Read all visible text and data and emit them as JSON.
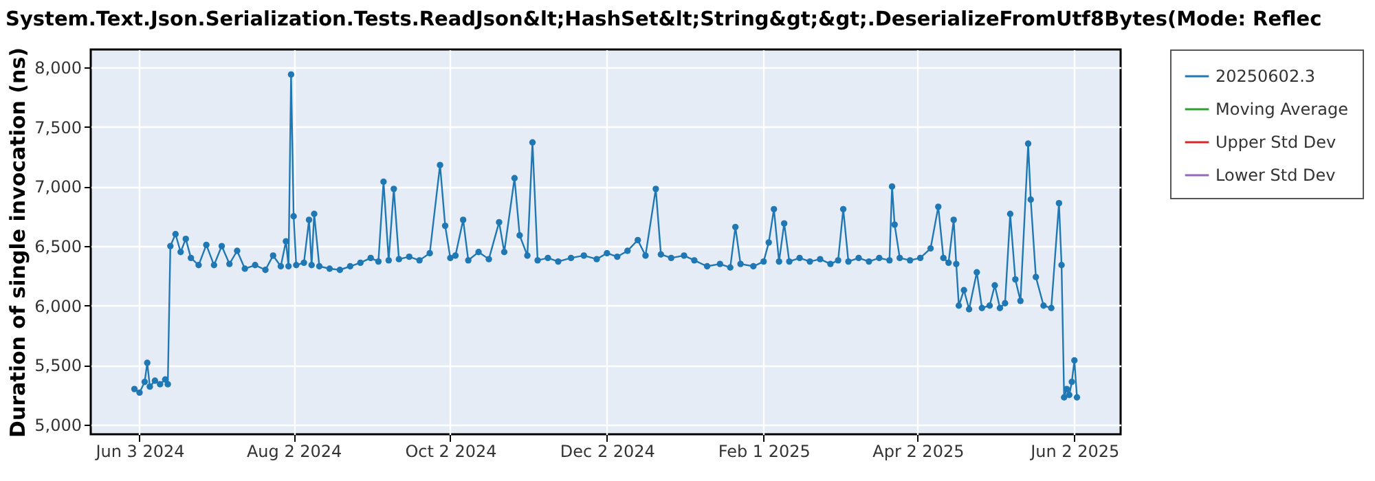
{
  "chart_data": {
    "type": "line",
    "title": "System.Text.Json.Serialization.Tests.ReadJson&lt;HashSet&lt;String&gt;&gt;.DeserializeFromUtf8Bytes(Mode: Reflec",
    "ylabel": "Duration of single invocation (ns)",
    "x": [
      "2024-06-01",
      "2024-06-03",
      "2024-06-05",
      "2024-06-06",
      "2024-06-07",
      "2024-06-09",
      "2024-06-11",
      "2024-06-13",
      "2024-06-14",
      "2024-06-15",
      "2024-06-17",
      "2024-06-19",
      "2024-06-21",
      "2024-06-23",
      "2024-06-26",
      "2024-06-29",
      "2024-07-02",
      "2024-07-05",
      "2024-07-08",
      "2024-07-11",
      "2024-07-14",
      "2024-07-18",
      "2024-07-22",
      "2024-07-25",
      "2024-07-28",
      "2024-07-30",
      "2024-07-31",
      "2024-08-01",
      "2024-08-02",
      "2024-08-03",
      "2024-08-06",
      "2024-08-08",
      "2024-08-09",
      "2024-08-10",
      "2024-08-12",
      "2024-08-16",
      "2024-08-20",
      "2024-08-24",
      "2024-08-28",
      "2024-09-01",
      "2024-09-04",
      "2024-09-06",
      "2024-09-08",
      "2024-09-10",
      "2024-09-12",
      "2024-09-16",
      "2024-09-20",
      "2024-09-24",
      "2024-09-28",
      "2024-09-30",
      "2024-10-02",
      "2024-10-04",
      "2024-10-07",
      "2024-10-09",
      "2024-10-13",
      "2024-10-17",
      "2024-10-21",
      "2024-10-23",
      "2024-10-27",
      "2024-10-29",
      "2024-11-01",
      "2024-11-03",
      "2024-11-05",
      "2024-11-09",
      "2024-11-13",
      "2024-11-18",
      "2024-11-23",
      "2024-11-28",
      "2024-12-02",
      "2024-12-06",
      "2024-12-10",
      "2024-12-14",
      "2024-12-17",
      "2024-12-21",
      "2024-12-23",
      "2024-12-27",
      "2025-01-01",
      "2025-01-05",
      "2025-01-10",
      "2025-01-15",
      "2025-01-19",
      "2025-01-21",
      "2025-01-23",
      "2025-01-28",
      "2025-02-01",
      "2025-02-03",
      "2025-02-05",
      "2025-02-07",
      "2025-02-09",
      "2025-02-11",
      "2025-02-15",
      "2025-02-19",
      "2025-02-23",
      "2025-02-27",
      "2025-03-02",
      "2025-03-04",
      "2025-03-06",
      "2025-03-10",
      "2025-03-14",
      "2025-03-18",
      "2025-03-22",
      "2025-03-23",
      "2025-03-24",
      "2025-03-26",
      "2025-03-30",
      "2025-04-03",
      "2025-04-07",
      "2025-04-10",
      "2025-04-12",
      "2025-04-14",
      "2025-04-16",
      "2025-04-17",
      "2025-04-18",
      "2025-04-20",
      "2025-04-22",
      "2025-04-25",
      "2025-04-27",
      "2025-04-30",
      "2025-05-02",
      "2025-05-04",
      "2025-05-06",
      "2025-05-08",
      "2025-05-10",
      "2025-05-12",
      "2025-05-15",
      "2025-05-16",
      "2025-05-18",
      "2025-05-21",
      "2025-05-24",
      "2025-05-27",
      "2025-05-28",
      "2025-05-29",
      "2025-05-30",
      "2025-05-31",
      "2025-06-01",
      "2025-06-02",
      "2025-06-03"
    ],
    "series": [
      {
        "name": "20250602.3",
        "color": "#1f77b4",
        "values": [
          5300,
          5270,
          5360,
          5520,
          5320,
          5370,
          5340,
          5380,
          5340,
          6500,
          6600,
          6450,
          6560,
          6400,
          6340,
          6510,
          6340,
          6500,
          6350,
          6460,
          6310,
          6340,
          6300,
          6420,
          6330,
          6540,
          6330,
          7940,
          6750,
          6340,
          6360,
          6720,
          6340,
          6770,
          6330,
          6310,
          6300,
          6330,
          6360,
          6400,
          6370,
          7040,
          6380,
          6980,
          6390,
          6410,
          6380,
          6440,
          7180,
          6670,
          6400,
          6420,
          6720,
          6380,
          6450,
          6390,
          6700,
          6450,
          7070,
          6590,
          6420,
          7370,
          6380,
          6400,
          6370,
          6400,
          6420,
          6390,
          6440,
          6410,
          6460,
          6550,
          6420,
          6980,
          6430,
          6400,
          6420,
          6380,
          6330,
          6350,
          6320,
          6660,
          6350,
          6330,
          6370,
          6530,
          6810,
          6370,
          6690,
          6370,
          6400,
          6370,
          6390,
          6350,
          6380,
          6810,
          6370,
          6400,
          6370,
          6400,
          6380,
          7000,
          6680,
          6400,
          6380,
          6400,
          6480,
          6830,
          6400,
          6360,
          6720,
          6350,
          6000,
          6130,
          5970,
          6280,
          5980,
          6000,
          6170,
          5980,
          6020,
          6770,
          6220,
          6040,
          7360,
          6890,
          6240,
          6000,
          5980,
          6860,
          6340,
          5230,
          5300,
          5250,
          5360,
          5540,
          5230
        ]
      },
      {
        "name": "Moving Average",
        "color": "#2ca02c",
        "values": [
          null,
          null,
          null,
          null,
          null,
          null,
          null,
          null,
          null,
          null,
          null,
          null,
          null,
          null,
          null,
          null,
          null,
          null,
          null,
          null,
          null,
          null,
          null,
          null,
          null,
          null,
          null,
          null,
          null,
          null,
          null,
          null,
          null,
          null,
          null,
          null,
          null,
          null,
          null,
          null,
          null,
          null,
          null,
          null,
          null,
          null,
          null,
          null,
          null,
          null,
          null,
          null,
          null,
          null,
          null,
          null,
          null,
          null,
          null,
          null,
          null,
          null,
          null,
          null,
          null,
          null,
          null,
          null,
          null,
          null,
          null,
          null,
          null,
          null,
          null,
          null,
          null,
          null,
          null,
          null,
          null,
          null,
          null,
          null,
          null,
          null,
          null,
          null,
          null,
          null,
          null,
          null,
          null,
          null,
          null,
          null,
          null,
          null,
          null,
          null,
          null,
          null,
          null,
          null,
          null,
          null,
          null,
          null,
          null,
          null,
          null,
          null,
          null,
          null,
          null,
          null,
          null,
          null,
          null,
          null,
          null,
          null,
          null,
          null,
          null,
          null,
          null,
          null,
          null,
          null,
          null,
          null,
          null,
          null,
          null,
          null,
          null
        ]
      },
      {
        "name": "Upper Std Dev",
        "color": "#d62728",
        "values": [
          null,
          null,
          null,
          null,
          null,
          null,
          null,
          null,
          null,
          null,
          null,
          null,
          null,
          null,
          null,
          null,
          null,
          null,
          null,
          null,
          null,
          null,
          null,
          null,
          null,
          null,
          null,
          null,
          null,
          null,
          null,
          null,
          null,
          null,
          null,
          null,
          null,
          null,
          null,
          null,
          null,
          null,
          null,
          null,
          null,
          null,
          null,
          null,
          null,
          null,
          null,
          null,
          null,
          null,
          null,
          null,
          null,
          null,
          null,
          null,
          null,
          null,
          null,
          null,
          null,
          null,
          null,
          null,
          null,
          null,
          null,
          null,
          null,
          null,
          null,
          null,
          null,
          null,
          null,
          null,
          null,
          null,
          null,
          null,
          null,
          null,
          null,
          null,
          null,
          null,
          null,
          null,
          null,
          null,
          null,
          null,
          null,
          null,
          null,
          null,
          null,
          null,
          null,
          null,
          null,
          null,
          null,
          null,
          null,
          null,
          null,
          null,
          null,
          null,
          null,
          null,
          null,
          null,
          null,
          null,
          null,
          null,
          null,
          null,
          null,
          null,
          null,
          null,
          null,
          null,
          null,
          null,
          null,
          null,
          null,
          null,
          null
        ]
      },
      {
        "name": "Lower Std Dev",
        "color": "#9467bd",
        "values": [
          null,
          null,
          null,
          null,
          null,
          null,
          null,
          null,
          null,
          null,
          null,
          null,
          null,
          null,
          null,
          null,
          null,
          null,
          null,
          null,
          null,
          null,
          null,
          null,
          null,
          null,
          null,
          null,
          null,
          null,
          null,
          null,
          null,
          null,
          null,
          null,
          null,
          null,
          null,
          null,
          null,
          null,
          null,
          null,
          null,
          null,
          null,
          null,
          null,
          null,
          null,
          null,
          null,
          null,
          null,
          null,
          null,
          null,
          null,
          null,
          null,
          null,
          null,
          null,
          null,
          null,
          null,
          null,
          null,
          null,
          null,
          null,
          null,
          null,
          null,
          null,
          null,
          null,
          null,
          null,
          null,
          null,
          null,
          null,
          null,
          null,
          null,
          null,
          null,
          null,
          null,
          null,
          null,
          null,
          null,
          null,
          null,
          null,
          null,
          null,
          null,
          null,
          null,
          null,
          null,
          null,
          null,
          null,
          null,
          null,
          null,
          null,
          null,
          null,
          null,
          null,
          null,
          null,
          null,
          null,
          null,
          null,
          null,
          null,
          null,
          null,
          null,
          null,
          null,
          null,
          null,
          null,
          null,
          null,
          null,
          null,
          null
        ]
      }
    ],
    "xlim": [
      "2024-05-15",
      "2025-06-20"
    ],
    "xticks": [
      {
        "value": "2024-06-03",
        "label": "Jun 3 2024"
      },
      {
        "value": "2024-08-02",
        "label": "Aug 2 2024"
      },
      {
        "value": "2024-10-02",
        "label": "Oct 2 2024"
      },
      {
        "value": "2024-12-02",
        "label": "Dec 2 2024"
      },
      {
        "value": "2025-02-01",
        "label": "Feb 1 2025"
      },
      {
        "value": "2025-04-02",
        "label": "Apr 2 2025"
      },
      {
        "value": "2025-06-02",
        "label": "Jun 2 2025"
      }
    ],
    "ylim": [
      4920,
      8150
    ],
    "yticks": [
      {
        "value": 5000,
        "label": "5,000"
      },
      {
        "value": 5500,
        "label": "5,500"
      },
      {
        "value": 6000,
        "label": "6,000"
      },
      {
        "value": 6500,
        "label": "6,500"
      },
      {
        "value": 7000,
        "label": "7,000"
      },
      {
        "value": 7500,
        "label": "7,500"
      },
      {
        "value": 8000,
        "label": "8,000"
      }
    ],
    "grid": true,
    "legend": "right",
    "marker": "circle",
    "line_style": "solid"
  }
}
